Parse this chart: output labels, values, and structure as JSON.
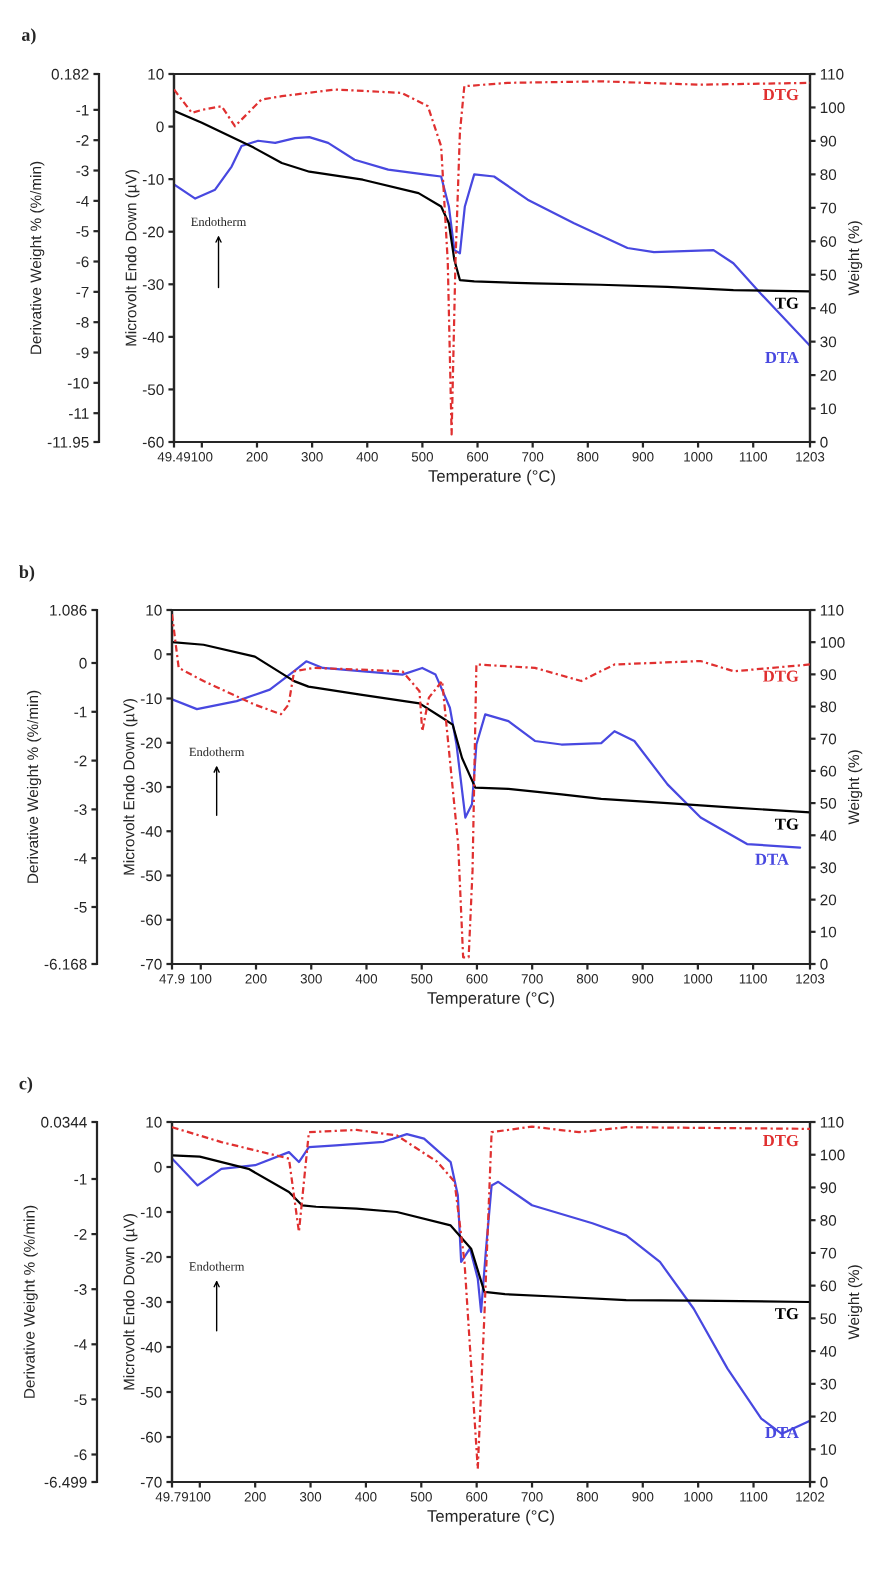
{
  "chart_data": [
    {
      "type": "line",
      "title": "a)",
      "xlabel": "Temperature (°C)",
      "ylabel": "Microvolt Endo Down (µV)",
      "y2label": "Weight (%)",
      "y3label": "Derivative Weight % (%/min)",
      "xlim": [
        49.49,
        1203
      ],
      "xticks": [
        49.49,
        100,
        200,
        300,
        400,
        500,
        600,
        700,
        800,
        900,
        1000,
        1100,
        1203
      ],
      "ylim": [
        -60,
        10
      ],
      "yticks": [
        -60,
        -50,
        -40,
        -30,
        -20,
        -10,
        0,
        10
      ],
      "y2lim": [
        0,
        110
      ],
      "y2ticks": [
        0,
        10,
        20,
        30,
        40,
        50,
        60,
        70,
        80,
        90,
        100,
        110
      ],
      "y3lim": [
        -11.95,
        0.182
      ],
      "y3ticks": [
        -11.95,
        -11,
        -10,
        -9,
        -8,
        -7,
        -6,
        -5,
        -4,
        -3,
        -2,
        -1,
        0.182
      ],
      "series": [
        {
          "name": "DTA",
          "color": "#4848e0",
          "axis": "y",
          "line_style": "solid",
          "x": [
            49.49,
            88,
            124,
            154,
            172,
            202,
            233,
            269,
            295,
            329,
            377,
            438,
            510,
            534,
            548,
            558,
            568,
            577,
            594,
            630,
            691,
            775,
            872,
            920,
            1028,
            1064,
            1113,
            1203
          ],
          "values": [
            -11,
            -13.7,
            -12,
            -7.6,
            -3.7,
            -2.7,
            -3.1,
            -2.2,
            -2,
            -3.1,
            -6.3,
            -8.2,
            -9.2,
            -9.5,
            -15.2,
            -23.5,
            -24.1,
            -15.2,
            -9.1,
            -9.5,
            -13.9,
            -18.4,
            -23.1,
            -23.9,
            -23.5,
            -26,
            -31.7,
            -41.7
          ]
        },
        {
          "name": "TG",
          "color": "#000000",
          "axis": "y2",
          "line_style": "solid",
          "x": [
            49.49,
            100,
            194,
            245,
            295,
            392,
            493,
            534,
            548,
            558,
            568,
            594,
            703,
            823,
            944,
            1064,
            1203
          ],
          "values": [
            99,
            95.4,
            88,
            83.4,
            80.8,
            78.4,
            74.4,
            70.4,
            65.4,
            54.4,
            48.4,
            48,
            47.4,
            47,
            46.4,
            45.4,
            45
          ]
        },
        {
          "name": "DTG",
          "color": "#e03030",
          "axis": "y3",
          "line_style": "dashed",
          "x": [
            49.49,
            82,
            100,
            136,
            160,
            184,
            208,
            245,
            341,
            462,
            510,
            534,
            546,
            553,
            560,
            568,
            576,
            655,
            823,
            1004,
            1203
          ],
          "values": [
            -0.33,
            -1.1,
            -1.0,
            -0.88,
            -1.54,
            -1.1,
            -0.66,
            -0.55,
            -0.33,
            -0.44,
            -0.88,
            -2.2,
            -6,
            -11.7,
            -6,
            -1.76,
            -0.22,
            -0.11,
            -0.06,
            -0.17,
            -0.11
          ]
        }
      ],
      "annotations": [
        "Endotherm"
      ]
    },
    {
      "type": "line",
      "title": "b)",
      "xlabel": "Temperature (°C)",
      "ylabel": "Microvolt Endo Down (µV)",
      "y2label": "Weight (%)",
      "y3label": "Derivative Weight % (%/min)",
      "xlim": [
        47.9,
        1203
      ],
      "xticks": [
        47.9,
        100,
        200,
        300,
        400,
        500,
        600,
        700,
        800,
        900,
        1000,
        1100,
        1203
      ],
      "ylim": [
        -70,
        10
      ],
      "yticks": [
        -70,
        -60,
        -50,
        -40,
        -30,
        -20,
        -10,
        0,
        10
      ],
      "y2lim": [
        0,
        110
      ],
      "y2ticks": [
        0,
        10,
        20,
        30,
        40,
        50,
        60,
        70,
        80,
        90,
        100,
        110
      ],
      "y3lim": [
        -6.168,
        1.086
      ],
      "y3ticks": [
        -6.168,
        -5,
        -4,
        -3,
        -2,
        -1,
        0,
        1.086
      ],
      "series": [
        {
          "name": "DTA",
          "color": "#4848e0",
          "axis": "y",
          "line_style": "solid",
          "x": [
            47.9,
            93,
            165,
            225,
            269,
            291,
            321,
            389,
            465,
            501,
            525,
            551,
            563,
            579,
            591,
            599,
            615,
            657,
            705,
            753,
            825,
            849,
            885,
            945,
            1005,
            1089,
            1185
          ],
          "values": [
            -10.2,
            -12.4,
            -10.6,
            -8,
            -3.8,
            -1.6,
            -3.1,
            -3.8,
            -4.6,
            -3.1,
            -4.6,
            -12.1,
            -20.4,
            -36.9,
            -33.9,
            -20.4,
            -13.6,
            -15.1,
            -19.6,
            -20.4,
            -20.1,
            -17.4,
            -19.6,
            -29.4,
            -36.9,
            -42.9,
            -43.7
          ]
        },
        {
          "name": "TG",
          "color": "#000000",
          "axis": "y2",
          "line_style": "solid",
          "x": [
            47.9,
            105,
            198,
            269,
            295,
            389,
            496,
            537,
            556,
            573,
            597,
            657,
            753,
            825,
            945,
            1065,
            1203
          ],
          "values": [
            100,
            99.2,
            95.5,
            87.9,
            86.2,
            83.7,
            81,
            76.5,
            74.4,
            64,
            54.8,
            54.4,
            52.7,
            51.3,
            50,
            48.6,
            47.1
          ]
        },
        {
          "name": "DTG",
          "color": "#e03030",
          "axis": "y3",
          "line_style": "dashed",
          "x": [
            47.9,
            60,
            105,
            197,
            245,
            259,
            269,
            305,
            465,
            496,
            501,
            513,
            537,
            566,
            575,
            585,
            592,
            599,
            705,
            789,
            849,
            1005,
            1065,
            1203
          ],
          "values": [
            1.0,
            -0.1,
            -0.37,
            -0.85,
            -1.05,
            -0.85,
            -0.17,
            -0.1,
            -0.17,
            -0.58,
            -1.4,
            -0.71,
            -0.37,
            -3.71,
            -6.03,
            -6.03,
            -4.26,
            -0.03,
            -0.1,
            -0.37,
            -0.03,
            0.04,
            -0.17,
            -0.03
          ]
        }
      ],
      "annotations": [
        "Endotherm"
      ]
    },
    {
      "type": "line",
      "title": "c)",
      "xlabel": "Temperature (°C)",
      "ylabel": "Microvolt Endo Down (µV)",
      "y2label": "Weight (%)",
      "y3label": "Derivative Weight % (%/min)",
      "xlim": [
        49.79,
        1202
      ],
      "xticks": [
        49.79,
        100,
        200,
        300,
        400,
        500,
        600,
        700,
        800,
        900,
        1000,
        1100,
        1202
      ],
      "ylim": [
        -70,
        10
      ],
      "yticks": [
        -70,
        -60,
        -50,
        -40,
        -30,
        -20,
        -10,
        0,
        10
      ],
      "y2lim": [
        0,
        110
      ],
      "y2ticks": [
        0,
        10,
        20,
        30,
        40,
        50,
        60,
        70,
        80,
        90,
        100,
        110
      ],
      "y3lim": [
        -6.499,
        0.0344
      ],
      "y3ticks": [
        -6.499,
        -6,
        -5,
        -4,
        -3,
        -2,
        -1,
        0.0344
      ],
      "series": [
        {
          "name": "DTA",
          "color": "#4848e0",
          "axis": "y",
          "line_style": "solid",
          "x": [
            49.79,
            96,
            139,
            200,
            261,
            279,
            297,
            346,
            432,
            474,
            505,
            553,
            566,
            572,
            588,
            602,
            608,
            617,
            627,
            639,
            700,
            809,
            870,
            931,
            992,
            1053,
            1114,
            1151,
            1202
          ],
          "values": [
            1.9,
            -4.1,
            -0.4,
            0.4,
            3.3,
            1.1,
            4.4,
            4.8,
            5.6,
            7.3,
            6.3,
            1.1,
            -6.3,
            -21.1,
            -18.1,
            -24.8,
            -32.2,
            -18.1,
            -4.1,
            -3.3,
            -8.5,
            -12.5,
            -15.2,
            -21.1,
            -31.5,
            -44.8,
            -55.9,
            -59.3,
            -56.4
          ]
        },
        {
          "name": "TG",
          "color": "#000000",
          "axis": "y2",
          "line_style": "solid",
          "x": [
            49.79,
            100,
            188,
            261,
            285,
            310,
            383,
            456,
            553,
            590,
            614,
            651,
            749,
            870,
            992,
            1202
          ],
          "values": [
            99.8,
            99.4,
            95.7,
            88.6,
            84.5,
            84.1,
            83.5,
            82.5,
            78.4,
            71.3,
            58.1,
            57.4,
            56.6,
            55.6,
            55.4,
            55
          ]
        },
        {
          "name": "DTG",
          "color": "#e03030",
          "axis": "y3",
          "line_style": "dashed",
          "x": [
            49.79,
            139,
            261,
            279,
            297,
            383,
            456,
            529,
            560,
            578,
            602,
            614,
            627,
            700,
            785,
            870,
            1202
          ],
          "values": [
            -0.06,
            -0.33,
            -0.63,
            -1.96,
            -0.15,
            -0.11,
            -0.21,
            -0.69,
            -1.05,
            -2.5,
            -6.26,
            -3.47,
            -0.15,
            -0.05,
            -0.15,
            -0.06,
            -0.09
          ]
        }
      ],
      "annotations": [
        "Endotherm"
      ]
    }
  ]
}
